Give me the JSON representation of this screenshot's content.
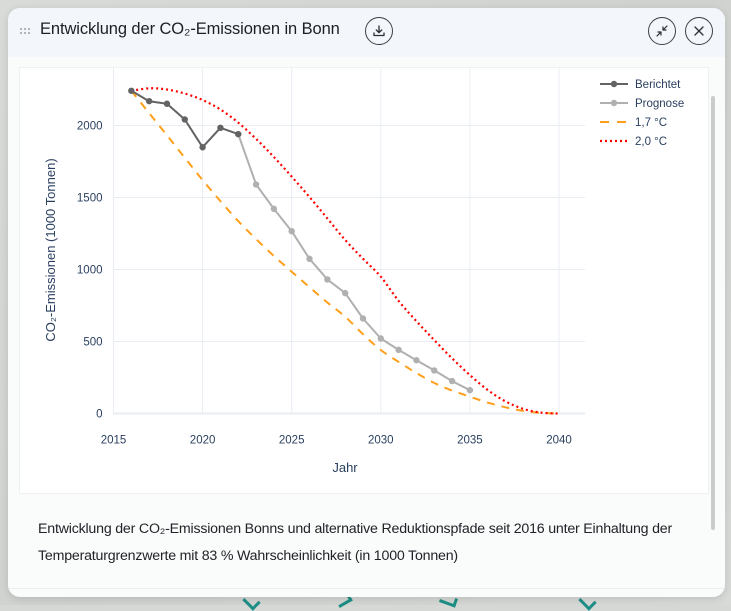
{
  "window": {
    "title": "Entwicklung der CO₂-Emissionen in Bonn",
    "caption": "Entwicklung der CO₂-Emissionen Bonns und alternative Reduktionspfade seit 2016 unter Einhaltung der Temperaturgrenzwerte mit 83 % Wahrscheinlichkeit (in 1000 Tonnen)",
    "icons": {
      "drag": "drag-handle-icon",
      "download": "download-icon",
      "minimize": "minimize-icon",
      "close": "close-icon"
    }
  },
  "colors": {
    "berichtet": "#636363",
    "prognose": "#b0b0b0",
    "path17": "#ff9f1c",
    "path20": "#ff0000",
    "grid": "#e8ecf3",
    "axis_text": "#2a3f5f"
  },
  "chart_data": {
    "type": "line",
    "title": "",
    "xlabel": "Jahr",
    "ylabel": "CO₂-Emissionen (1000 Tonnen)",
    "xlim": [
      2015,
      2041.5
    ],
    "ylim": [
      0,
      2400
    ],
    "grid": true,
    "legend_position": "top-right",
    "x_ticks": [
      2015,
      2020,
      2025,
      2030,
      2035,
      2040
    ],
    "x_tick_labels": [
      "2015",
      "2020",
      "2025",
      "2030",
      "2035",
      "2040"
    ],
    "y_ticks": [
      0,
      500,
      1000,
      1500,
      2000
    ],
    "y_tick_labels": [
      "0",
      "500",
      "1000",
      "1500",
      "2000"
    ],
    "series": [
      {
        "name": "Berichtet",
        "style": "solid-markers",
        "x": [
          2016,
          2017,
          2018,
          2019,
          2020,
          2021,
          2022
        ],
        "values": [
          2241,
          2169,
          2151,
          2042,
          1849,
          1984,
          1940
        ]
      },
      {
        "name": "Prognose",
        "style": "solid-markers",
        "x": [
          2022,
          2023,
          2024,
          2025,
          2026,
          2027,
          2028,
          2029,
          2030,
          2031,
          2032,
          2033,
          2034,
          2035
        ],
        "values": [
          1940,
          1590,
          1421,
          1266,
          1074,
          931,
          836,
          660,
          521,
          442,
          370,
          299,
          225,
          162
        ]
      },
      {
        "name": "1,7 °C",
        "style": "dash",
        "x": [
          2016,
          2017,
          2018,
          2019,
          2020,
          2021,
          2022,
          2023,
          2024,
          2025,
          2026,
          2027,
          2028,
          2029,
          2030,
          2031,
          2032,
          2033,
          2034,
          2035,
          2036,
          2037,
          2038,
          2039,
          2040
        ],
        "values": [
          2241,
          2086,
          1932,
          1776,
          1621,
          1475,
          1336,
          1211,
          1094,
          985,
          877,
          771,
          672,
          551,
          441,
          358,
          281,
          212,
          160,
          117,
          76,
          43,
          18,
          4,
          0
        ]
      },
      {
        "name": "2,0 °C",
        "style": "dot",
        "x": [
          2016,
          2017,
          2018,
          2019,
          2020,
          2021,
          2022,
          2023,
          2024,
          2025,
          2026,
          2027,
          2028,
          2029,
          2030,
          2031,
          2032,
          2033,
          2034,
          2035,
          2036,
          2037,
          2038,
          2039,
          2040
        ],
        "values": [
          2241,
          2258,
          2250,
          2222,
          2177,
          2111,
          2020,
          1907,
          1781,
          1645,
          1503,
          1355,
          1205,
          1075,
          950,
          782,
          641,
          510,
          383,
          267,
          163,
          84,
          32,
          6,
          0
        ]
      }
    ]
  }
}
